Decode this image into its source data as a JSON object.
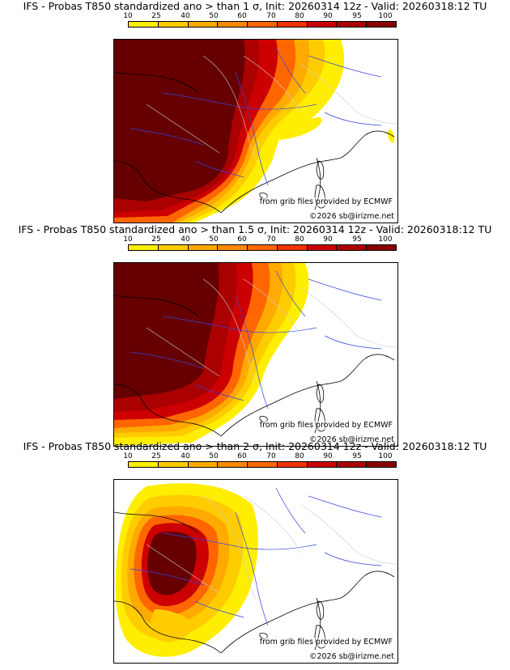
{
  "colorbar": {
    "labels": [
      "10",
      "25",
      "40",
      "50",
      "60",
      "70",
      "80",
      "90",
      "95",
      "100"
    ],
    "colors": [
      "#ffee00",
      "#ffcc00",
      "#ffaa00",
      "#ff8800",
      "#ff6600",
      "#ee3300",
      "#cc0000",
      "#aa0000",
      "#880000",
      "#660000"
    ]
  },
  "panels": [
    {
      "title": "IFS - Probas T850  standardized ano > than 1 σ, Init: 20260314 12z - Valid: 20260318:12 TU",
      "source": "from grib files provided by ECMWF",
      "copyright": "©2026 sb@irizme.net"
    },
    {
      "title": "IFS - Probas T850  standardized ano > than 1.5 σ, Init: 20260314 12z - Valid: 20260318:12 TU",
      "source": "from grib files provided by ECMWF",
      "copyright": "©2026 sb@irizme.net"
    },
    {
      "title": "IFS - Probas T850  standardized ano > than 2 σ, Init: 20260314 12z - Valid: 20260318:12 TU",
      "source": "from grib files provided by ECMWF",
      "copyright": "©2026 sb@irizme.net"
    }
  ]
}
